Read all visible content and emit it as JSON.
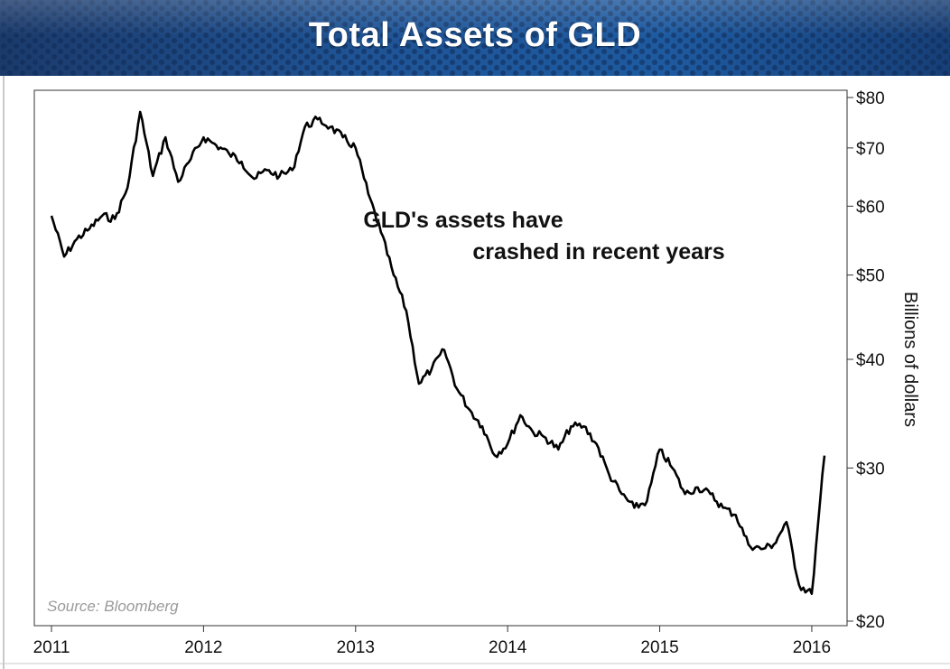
{
  "chart_data": {
    "type": "line",
    "title": "Total Assets of GLD",
    "annotation": [
      "GLD's assets have",
      "crashed in recent years"
    ],
    "source": "Source: Bloomberg",
    "ylabel": "Billions of dollars",
    "y_scale": "log",
    "ylim": [
      20,
      80
    ],
    "y_ticks": [
      {
        "value": 80,
        "label": "$80"
      },
      {
        "value": 70,
        "label": "$70"
      },
      {
        "value": 60,
        "label": "$60"
      },
      {
        "value": 50,
        "label": "$50"
      },
      {
        "value": 40,
        "label": "$40"
      },
      {
        "value": 30,
        "label": "$30"
      },
      {
        "value": 20,
        "label": "$20"
      }
    ],
    "x_ticks": [
      "2011",
      "2012",
      "2013",
      "2014",
      "2015",
      "2016"
    ],
    "xlim": [
      "2011-01",
      "2016-03"
    ],
    "grid": false,
    "series": [
      {
        "color": "#000000",
        "x": [
          "2011-01",
          "2011-02",
          "2011-03",
          "2011-04",
          "2011-05",
          "2011-06",
          "2011-07",
          "2011-08",
          "2011-09",
          "2011-10",
          "2011-11",
          "2011-12",
          "2012-01",
          "2012-02",
          "2012-03",
          "2012-04",
          "2012-05",
          "2012-06",
          "2012-07",
          "2012-08",
          "2012-09",
          "2012-10",
          "2012-11",
          "2012-12",
          "2013-01",
          "2013-02",
          "2013-03",
          "2013-04",
          "2013-05",
          "2013-06",
          "2013-07",
          "2013-08",
          "2013-09",
          "2013-10",
          "2013-11",
          "2013-12",
          "2014-01",
          "2014-02",
          "2014-03",
          "2014-04",
          "2014-05",
          "2014-06",
          "2014-07",
          "2014-08",
          "2014-09",
          "2014-10",
          "2014-11",
          "2014-12",
          "2015-01",
          "2015-02",
          "2015-03",
          "2015-04",
          "2015-05",
          "2015-06",
          "2015-07",
          "2015-08",
          "2015-09",
          "2015-10",
          "2015-11",
          "2015-12",
          "2016-01",
          "2016-02"
        ],
        "values": [
          58.5,
          52.5,
          55,
          56.5,
          58.5,
          58,
          63,
          77,
          65,
          72,
          64,
          68,
          72,
          70.5,
          69,
          67.5,
          64.5,
          66,
          65,
          66,
          74,
          75.5,
          74,
          72,
          70,
          62,
          56,
          50,
          45.5,
          37.5,
          39,
          41,
          37,
          35,
          33.5,
          31,
          32,
          34.5,
          33,
          32.5,
          31.5,
          33.5,
          33.5,
          32,
          29.5,
          28,
          27,
          27.5,
          31.5,
          30,
          28,
          28.5,
          28,
          27,
          26.5,
          24.5,
          24.2,
          24.5,
          26,
          22,
          21.5,
          31
        ]
      }
    ]
  }
}
